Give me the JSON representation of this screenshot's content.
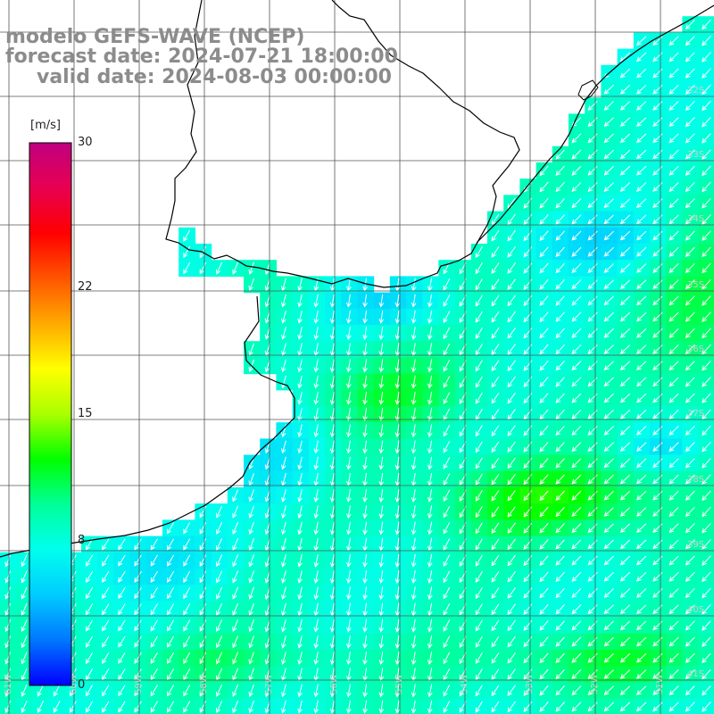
{
  "title": {
    "line1": "modelo GEFS-WAVE (NCEP)",
    "line2": "forecast date: 2024-07-21 18:00:00",
    "line3": "valid date: 2024-08-03 00:00:00"
  },
  "colorbar": {
    "unit": "[m/s]",
    "ticks": [
      "30",
      "22",
      "15",
      "8",
      "0"
    ],
    "tick_values": [
      30,
      22,
      15,
      8,
      0
    ],
    "min": 0,
    "max": 30,
    "colors": [
      "#0000ff",
      "#0077ff",
      "#00ccff",
      "#00ffee",
      "#00ff99",
      "#00ff00",
      "#aaff00",
      "#ffff00",
      "#ffaa00",
      "#ff5500",
      "#ff0000",
      "#e80050",
      "#c00080"
    ]
  },
  "longitude_labels": [
    "61W",
    "60W",
    "59W",
    "58W",
    "57W",
    "56W",
    "55W",
    "54W",
    "53W",
    "52W",
    "51W"
  ],
  "latitude_labels": [
    "32S",
    "33S",
    "34S",
    "35S",
    "36S",
    "37S",
    "38S",
    "39S",
    "40S",
    "41S"
  ],
  "field": {
    "variable": "wind speed",
    "units": "m/s",
    "typical_range": [
      7,
      14
    ],
    "direction": "from north-east (arrows pointing south-west)"
  }
}
